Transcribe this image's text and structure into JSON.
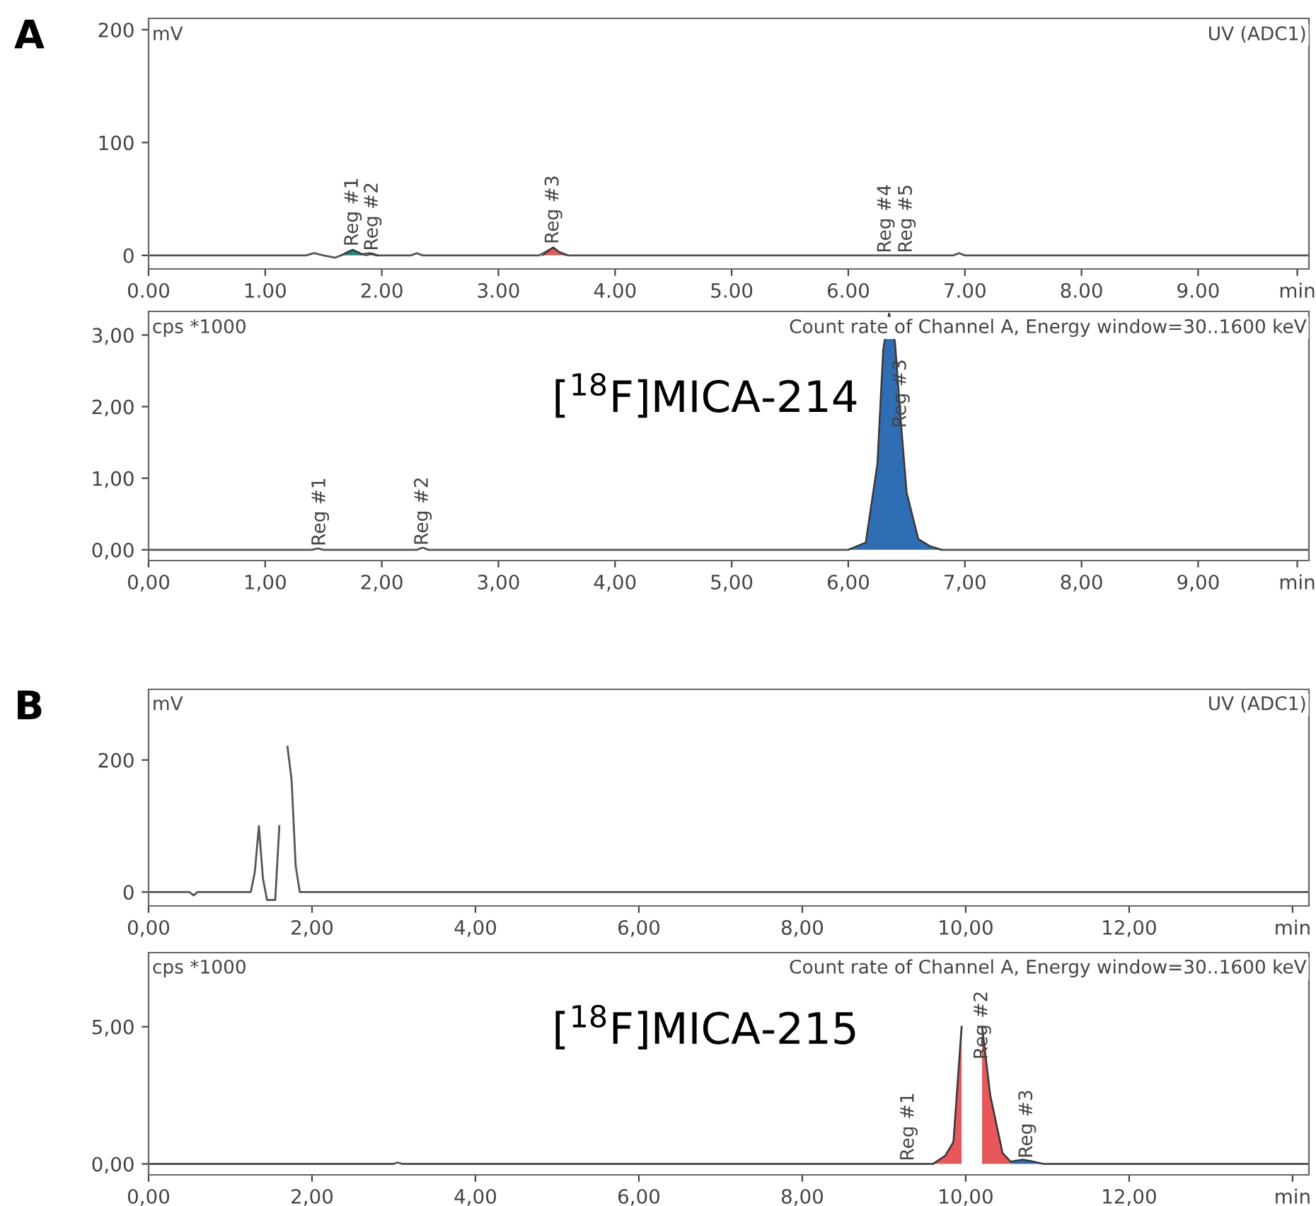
{
  "chart_data": [
    {
      "type": "line",
      "title": "A",
      "ylabel": "mV",
      "subtitle": "UV (ADC1)",
      "xlim": [
        0,
        9.95
      ],
      "ylim": [
        -12,
        210
      ],
      "yticks": [
        0,
        100,
        200
      ],
      "xticks": [
        {
          "value": 0,
          "label": "0.00"
        },
        {
          "value": 1,
          "label": "1.00"
        },
        {
          "value": 2,
          "label": "2.00"
        },
        {
          "value": 3,
          "label": "3.00"
        },
        {
          "value": 4,
          "label": "4.00"
        },
        {
          "value": 5,
          "label": "5.00"
        },
        {
          "value": 6,
          "label": "6.00"
        },
        {
          "value": 7,
          "label": "7.00"
        },
        {
          "value": 8,
          "label": "8.00"
        },
        {
          "value": 9,
          "label": "9.00"
        },
        {
          "value": 9.85,
          "label": "min"
        }
      ],
      "series": [
        {
          "color": "#555555",
          "x": [
            0,
            1.35,
            1.42,
            1.5,
            1.6,
            1.7,
            1.75,
            1.82,
            1.9,
            1.95,
            2.0,
            2.25,
            2.3,
            2.35,
            3.35,
            3.42,
            3.47,
            3.52,
            3.6,
            6.9,
            6.95,
            7.0,
            9.95
          ],
          "values": [
            0,
            0,
            2,
            0,
            -2,
            2,
            5,
            1,
            2,
            0,
            0,
            0,
            2,
            0,
            0,
            4,
            7,
            3,
            0,
            0,
            2,
            0,
            0
          ]
        },
        {
          "type": "area",
          "color": "#1a8a7a",
          "x": [
            1.65,
            1.7,
            1.75,
            1.82,
            1.86
          ],
          "values": [
            0,
            3,
            5,
            2,
            0
          ]
        },
        {
          "type": "area",
          "color": "#3a9a3a",
          "x": [
            1.87,
            1.92,
            1.97
          ],
          "values": [
            0,
            2,
            0
          ]
        },
        {
          "type": "area",
          "color": "#e05a5a",
          "x": [
            3.38,
            3.43,
            3.47,
            3.52,
            3.58
          ],
          "values": [
            0,
            4,
            7,
            3,
            0
          ]
        }
      ],
      "annotations": [
        {
          "text": "Reg #1",
          "x": 1.75,
          "y": 8
        },
        {
          "text": "Reg #2",
          "x": 1.92,
          "y": 4
        },
        {
          "text": "Reg #3",
          "x": 3.47,
          "y": 10
        },
        {
          "text": "Reg #4",
          "x": 6.32,
          "y": 2
        },
        {
          "text": "Reg #5",
          "x": 6.5,
          "y": 2
        }
      ],
      "grid": false,
      "legend": false
    },
    {
      "type": "line",
      "ylabel": "cps *1000",
      "subtitle": "Count rate of Channel A, Energy window=30..1600 keV",
      "xlim": [
        0,
        9.95
      ],
      "ylim": [
        -0.15,
        3.33
      ],
      "yticks": [
        {
          "value": 0,
          "label": "0,00"
        },
        {
          "value": 1,
          "label": "1,00"
        },
        {
          "value": 2,
          "label": "2,00"
        },
        {
          "value": 3,
          "label": "3,00"
        }
      ],
      "xticks": [
        {
          "value": 0,
          "label": "0,00"
        },
        {
          "value": 1,
          "label": "1,00"
        },
        {
          "value": 2,
          "label": "2,00"
        },
        {
          "value": 3,
          "label": "3,00"
        },
        {
          "value": 4,
          "label": "4,00"
        },
        {
          "value": 5,
          "label": "5,00"
        },
        {
          "value": 6,
          "label": "6,00"
        },
        {
          "value": 7,
          "label": "7,00"
        },
        {
          "value": 8,
          "label": "8,00"
        },
        {
          "value": 9,
          "label": "9,00"
        },
        {
          "value": 9.85,
          "label": "min"
        }
      ],
      "series": [
        {
          "color": "#555555",
          "x": [
            0,
            1.4,
            1.45,
            1.5,
            2.3,
            2.35,
            2.4,
            6.0,
            6.15,
            6.25,
            6.3,
            6.35,
            6.4,
            6.45,
            6.5,
            6.6,
            6.7,
            6.8,
            9.95
          ],
          "values": [
            0,
            0,
            0.02,
            0,
            0,
            0.03,
            0,
            0,
            0.1,
            1.2,
            2.8,
            3.3,
            2.9,
            1.8,
            0.8,
            0.15,
            0.05,
            0,
            0
          ]
        },
        {
          "type": "area",
          "color": "#2f6db5",
          "x": [
            6.0,
            6.15,
            6.25,
            6.3,
            6.35,
            6.4,
            6.45,
            6.5,
            6.6,
            6.7,
            6.8
          ],
          "values": [
            0,
            0.1,
            1.2,
            2.8,
            3.3,
            2.9,
            1.8,
            0.8,
            0.15,
            0.05,
            0
          ]
        }
      ],
      "annotations": [
        "[$^{18}$F]MICA-214",
        {
          "text": "Reg #1",
          "x": 1.47,
          "y": 0.05
        },
        {
          "text": "Reg #2",
          "x": 2.35,
          "y": 0.06
        },
        {
          "text": "Reg #3",
          "x": 6.45,
          "y": 1.7
        }
      ],
      "grid": false,
      "legend": false
    },
    {
      "type": "line",
      "title": "B",
      "ylabel": "mV",
      "subtitle": "UV (ADC1)",
      "xlim": [
        0,
        14.2
      ],
      "ylim": [
        -21,
        307
      ],
      "yticks": [
        0,
        200
      ],
      "xticks": [
        {
          "value": 0,
          "label": "0,00"
        },
        {
          "value": 2,
          "label": "2,00"
        },
        {
          "value": 4,
          "label": "4,00"
        },
        {
          "value": 6,
          "label": "6,00"
        },
        {
          "value": 8,
          "label": "8,00"
        },
        {
          "value": 10,
          "label": "10,00"
        },
        {
          "value": 12,
          "label": "12,00"
        },
        {
          "value": 14.0,
          "label": "min"
        }
      ],
      "series": [
        {
          "color": "#555555",
          "x": [
            0,
            0.5,
            0.55,
            0.6,
            1.25,
            1.3,
            1.35,
            1.4,
            1.45,
            1.55,
            1.6,
            1.65,
            1.7,
            1.75,
            1.8,
            1.85,
            2.0,
            14.2
          ],
          "values": [
            0,
            0,
            -5,
            0,
            0,
            30,
            100,
            20,
            -12,
            -12,
            100,
            null,
            220,
            170,
            40,
            0,
            0,
            0
          ]
        }
      ],
      "grid": false,
      "legend": false
    },
    {
      "type": "line",
      "ylabel": "cps *1000",
      "subtitle": "Count rate of Channel A, Energy window=30..1600 keV",
      "xlim": [
        0,
        14.2
      ],
      "ylim": [
        -0.4,
        7.7
      ],
      "yticks": [
        {
          "value": 0,
          "label": "0,00"
        },
        {
          "value": 5,
          "label": "5,00"
        }
      ],
      "xticks": [
        {
          "value": 0,
          "label": "0,00"
        },
        {
          "value": 2,
          "label": "2,00"
        },
        {
          "value": 4,
          "label": "4,00"
        },
        {
          "value": 6,
          "label": "6,00"
        },
        {
          "value": 8,
          "label": "8,00"
        },
        {
          "value": 10,
          "label": "10,00"
        },
        {
          "value": 12,
          "label": "12,00"
        },
        {
          "value": 14.0,
          "label": "min"
        }
      ],
      "series": [
        {
          "color": "#555555",
          "x": [
            0,
            3.0,
            3.05,
            3.1,
            9.2,
            9.6,
            9.75,
            9.85,
            9.95,
            10.05,
            10.1,
            10.2,
            10.3,
            10.45,
            10.55,
            10.65,
            10.7,
            10.8,
            10.95,
            14.2
          ],
          "values": [
            0,
            0,
            0.05,
            0,
            0,
            0,
            0.3,
            0.8,
            5,
            null,
            null,
            5,
            2.5,
            0.4,
            0.08,
            0.13,
            0.15,
            0.1,
            0,
            0
          ]
        },
        {
          "type": "area",
          "color": "#e8585a",
          "x": [
            9.6,
            9.75,
            9.85,
            9.95,
            10.05,
            10.1,
            10.2,
            10.3,
            10.45,
            10.55
          ],
          "values": [
            0,
            0.3,
            0.8,
            5,
            null,
            null,
            5,
            2.5,
            0.4,
            0.08
          ]
        },
        {
          "type": "area",
          "color": "#2f6db5",
          "x": [
            10.55,
            10.65,
            10.7,
            10.8,
            10.95
          ],
          "values": [
            0.08,
            0.13,
            0.15,
            0.1,
            0
          ]
        }
      ],
      "annotations": [
        "[$^{18}$F]MICA-215",
        {
          "text": "Reg #1",
          "x": 9.3,
          "y": 0.1
        },
        {
          "text": "Reg #2",
          "x": 10.2,
          "y": 3.8
        },
        {
          "text": "Reg #3",
          "x": 10.75,
          "y": 0.2
        }
      ],
      "grid": false,
      "legend": false
    }
  ]
}
